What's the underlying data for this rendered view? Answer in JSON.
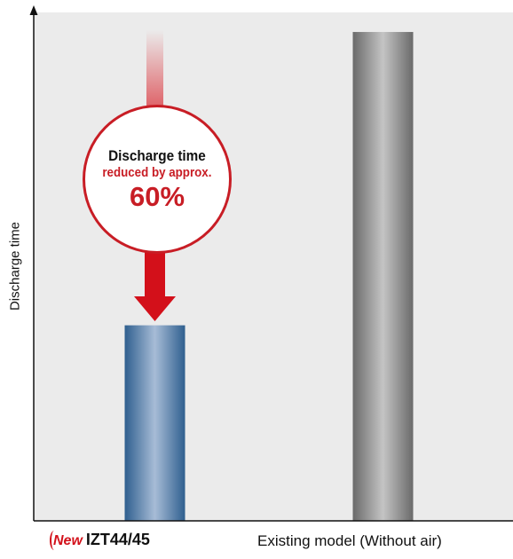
{
  "chart_data": {
    "type": "bar",
    "categories": [
      "IZT44/45",
      "Existing model (Without air)"
    ],
    "values": [
      0.4,
      1.0
    ],
    "ylabel": "Discharge time",
    "xlabel": "",
    "ylim": [
      0,
      1.04
    ],
    "grid": false,
    "new_badge": "New",
    "annotation": {
      "line1": "Discharge time",
      "line2": "reduced by approx.",
      "line3": "60%"
    }
  },
  "colors": {
    "plot_background": "#ebebeb",
    "new_bar": "#3f78a6",
    "existing_bar": "#8a8a8a",
    "accent_red": "#c81d25"
  }
}
